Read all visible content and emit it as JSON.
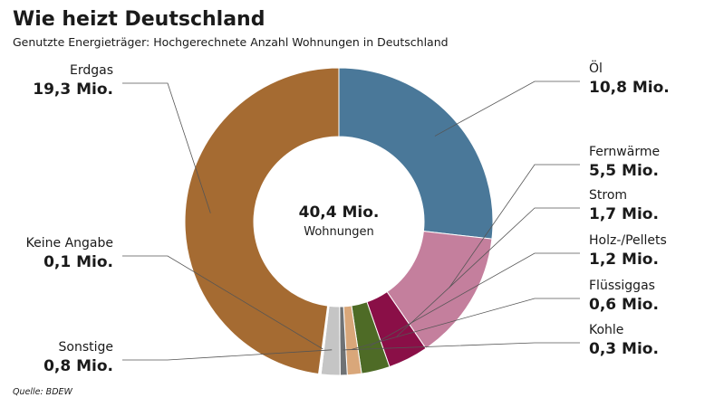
{
  "chart_data": {
    "type": "donut",
    "title": "Wie heizt Deutschland",
    "subtitle": "Genutzte Energieträger: Hochgerechnete Anzahl Wohnungen in Deutschland",
    "center_label": "40,4 Mio.",
    "center_sublabel": "Wohnungen",
    "source": "Quelle: BDEW",
    "categories": [
      "Öl",
      "Fernwärme",
      "Strom",
      "Holz-/Pellets",
      "Flüssiggas",
      "Kohle",
      "Sonstige",
      "Keine Angabe",
      "Erdgas"
    ],
    "values": [
      10.8,
      5.5,
      1.7,
      1.2,
      0.6,
      0.3,
      0.8,
      0.1,
      19.3
    ],
    "value_labels": [
      "10,8 Mio.",
      "5,5 Mio.",
      "1,7 Mio.",
      "1,2 Mio.",
      "0,6 Mio.",
      "0,3 Mio.",
      "0,8 Mio.",
      "0,1 Mio.",
      "19,3 Mio."
    ],
    "colors": [
      "#4a7899",
      "#c47f9d",
      "#8a0f47",
      "#4e6b26",
      "#d9a77a",
      "#6f7275",
      "#c5c5c5",
      "#ffffff",
      "#a56b32"
    ]
  }
}
